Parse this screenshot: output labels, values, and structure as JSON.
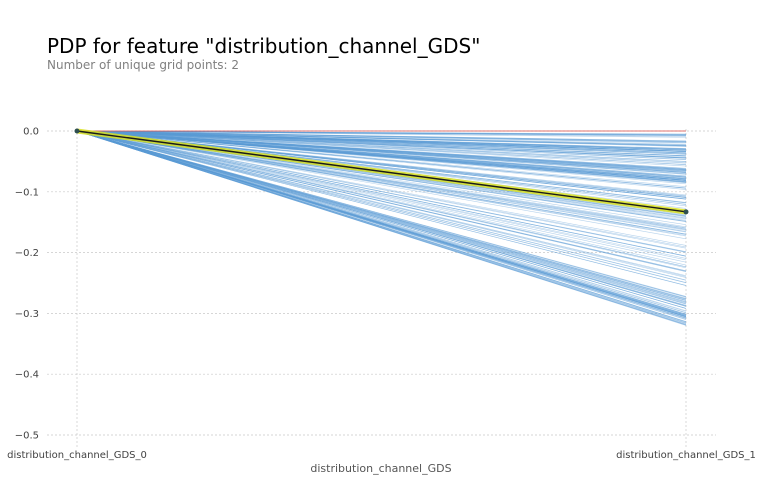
{
  "chart_data": {
    "type": "line",
    "title": "PDP for feature \"distribution_channel_GDS\"",
    "subtitle": "Number of unique grid points: 2",
    "xlabel": "distribution_channel_GDS",
    "ylabel": "",
    "categories": [
      "distribution_channel_GDS_0",
      "distribution_channel_GDS_1"
    ],
    "ylim": [
      -0.5,
      0.0
    ],
    "yticks": [
      0.0,
      -0.1,
      -0.2,
      -0.3,
      -0.4,
      -0.5
    ],
    "ytick_labels": [
      "0.0",
      "−0.1",
      "−0.2",
      "−0.3",
      "−0.4",
      "−0.5"
    ],
    "grid": true,
    "series": [
      {
        "values": [
          0.0,
          -0.133
        ],
        "style": "average"
      },
      {
        "values": [
          0.0,
          0.0
        ],
        "style": "reference"
      }
    ],
    "individual_endpoints_range": [
      -0.32,
      -0.005
    ],
    "colors": {
      "ice_lines": "#5b9bd5",
      "average_line": "#1a1a1a",
      "average_glow": "#d9e021",
      "reference_line": "#d9534f",
      "grid": "#c8c8c8"
    }
  }
}
